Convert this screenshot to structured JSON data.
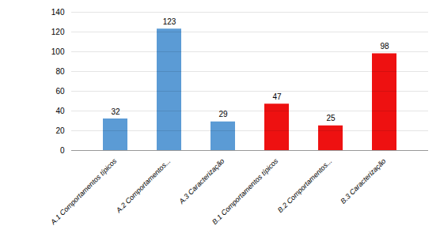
{
  "chart_data": {
    "type": "bar",
    "categories": [
      "A.1 Comportamentos típicos",
      "A.2 Comportamentos...",
      "A.3 Caracterização",
      "B.1 Comportamentos típicos",
      "B.2 Comportamentos...",
      "B.3 Caracterização"
    ],
    "values": [
      32,
      123,
      29,
      47,
      25,
      98
    ],
    "colors": [
      "#5B9BD5",
      "#5B9BD5",
      "#5B9BD5",
      "#EE1111",
      "#EE1111",
      "#EE1111"
    ],
    "ylim": [
      0,
      140
    ],
    "yticks": [
      0,
      20,
      40,
      60,
      80,
      100,
      120,
      140
    ],
    "grid": true,
    "data_labels": true
  }
}
